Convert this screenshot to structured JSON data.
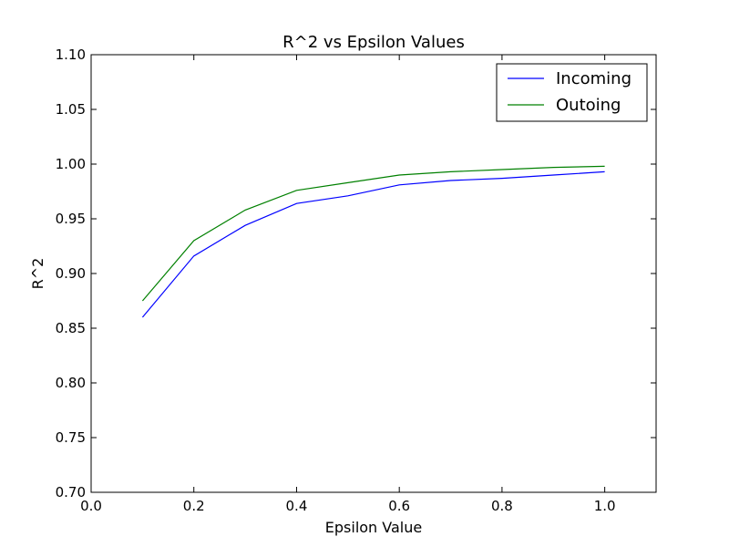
{
  "chart_data": {
    "type": "line",
    "title": "R^2 vs Epsilon Values",
    "xlabel": "Epsilon Value",
    "ylabel": "R^2",
    "xlim": [
      0.0,
      1.1
    ],
    "ylim": [
      0.7,
      1.1
    ],
    "xticks": [
      "0.0",
      "0.2",
      "0.4",
      "0.6",
      "0.8",
      "1.0"
    ],
    "yticks": [
      "0.70",
      "0.75",
      "0.80",
      "0.85",
      "0.90",
      "0.95",
      "1.00",
      "1.05",
      "1.10"
    ],
    "grid": false,
    "legend_position": "top-right",
    "x": [
      0.1,
      0.2,
      0.3,
      0.4,
      0.5,
      0.6,
      0.7,
      0.8,
      0.9,
      1.0
    ],
    "series": [
      {
        "name": "Incoming",
        "color": "#0000ff",
        "values": [
          0.86,
          0.916,
          0.944,
          0.964,
          0.971,
          0.981,
          0.985,
          0.987,
          0.99,
          0.993
        ]
      },
      {
        "name": "Outoing",
        "color": "#008000",
        "values": [
          0.875,
          0.93,
          0.958,
          0.976,
          0.983,
          0.99,
          0.993,
          0.995,
          0.997,
          0.998
        ]
      }
    ]
  }
}
